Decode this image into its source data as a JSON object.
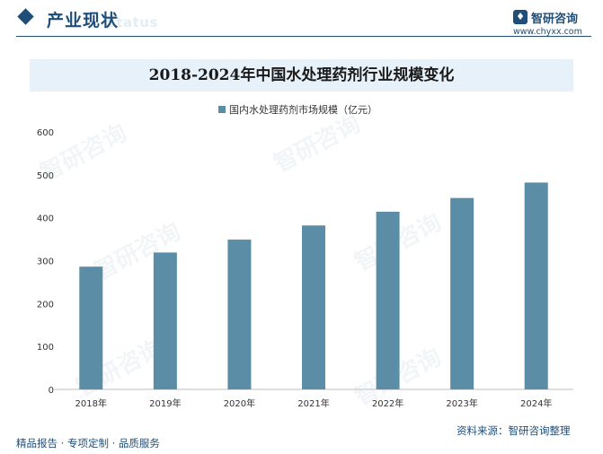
{
  "header": {
    "section_title": "产业现状",
    "section_title_en": "Status",
    "logo_name": "智研咨询",
    "logo_url": "www.chyxx.com"
  },
  "watermark": "智研咨询",
  "chart_data": {
    "type": "bar",
    "title": "2018-2024年中国水处理药剂行业规模变化",
    "categories": [
      "2018年",
      "2019年",
      "2020年",
      "2021年",
      "2022年",
      "2023年",
      "2024年"
    ],
    "series": [
      {
        "name": "国内水处理药剂市场规模（亿元）",
        "values": [
          286,
          319,
          349,
          382,
          414,
          446,
          482
        ]
      }
    ],
    "ylim": [
      0,
      600
    ],
    "yticks": [
      0,
      100,
      200,
      300,
      400,
      500,
      600
    ],
    "grid": false,
    "legend": "top-center",
    "bar_color": "#5b8ea6"
  },
  "footer": {
    "left": "精品报告 · 专项定制 · 品质服务",
    "right": "资料来源：智研咨询整理"
  }
}
